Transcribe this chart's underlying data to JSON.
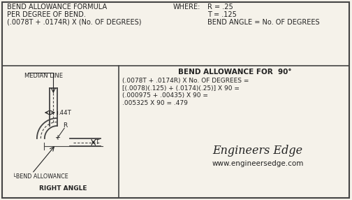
{
  "bg_color": "#f5f2ea",
  "border_color": "#444444",
  "text_color": "#222222",
  "top_box": {
    "formula_line1": "BEND ALLOWANCE FORMULA",
    "formula_line2": "PER DEGREE OF BEND.",
    "formula_line3": "(.0078T + .0174R) X (No. OF DEGREES)",
    "where_label": "WHERE:",
    "where_r": "R = .25",
    "where_t": "T = .125",
    "where_angle": "BEND ANGLE = No. OF DEGREES"
  },
  "bottom_box": {
    "title": "BEND ALLOWANCE FOR  90°",
    "calc_line1": "(.0078T + .0174R) X No. OF DEGREES =",
    "calc_line2": "[(.0078)(.125) + (.0174)(.25)] X 90 =",
    "calc_line3": "(.000975 + .00435) X 90 =",
    "calc_line4": ".005325 X 90 = .479",
    "diagram_median": "MEDIAN LINE",
    "diagram_44t": ".44T",
    "diagram_r": "R",
    "diagram_t": "T",
    "diagram_bend": "BEND ALLOWANCE",
    "diagram_angle": "RIGHT ANGLE",
    "brand_line1": "Engineers Edge",
    "brand_line2": "www.engineersedge.com"
  }
}
